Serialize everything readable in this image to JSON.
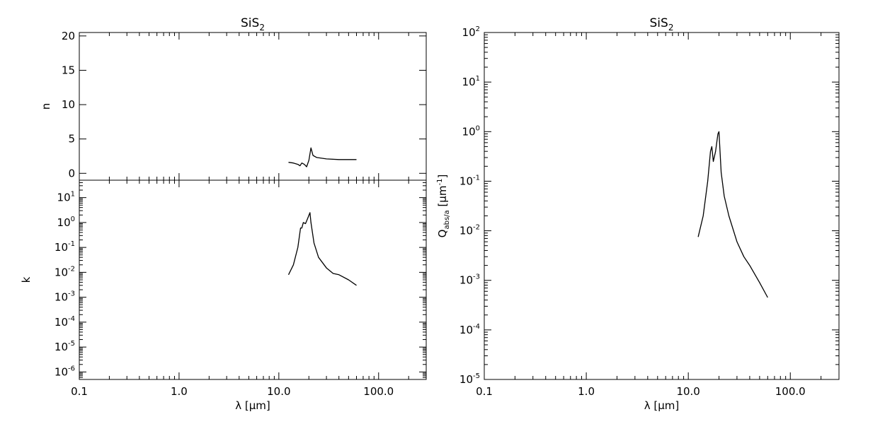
{
  "chart_data": [
    {
      "type": "line",
      "title": "SiS",
      "title_subscript": "2",
      "ylabel": "n",
      "xscale": "log",
      "yscale": "linear",
      "xlim": [
        0.1,
        300
      ],
      "ylim": [
        -1,
        20.5
      ],
      "y_ticks": [
        0,
        5,
        10,
        15,
        20
      ],
      "y_tick_labels": [
        "0",
        "5",
        "10",
        "15",
        "20"
      ],
      "series": [
        {
          "x": [
            12.5,
            14.0,
            15.5,
            16.3,
            17.0,
            18.0,
            19.0,
            20.0,
            21.0,
            22.0,
            24.0,
            30.0,
            40.0,
            50.0,
            60.0
          ],
          "y": [
            1.6,
            1.5,
            1.3,
            1.1,
            1.5,
            1.3,
            0.95,
            1.9,
            3.7,
            2.6,
            2.3,
            2.1,
            2.0,
            2.0,
            2.0
          ]
        }
      ]
    },
    {
      "type": "line",
      "xlabel": "λ [μm]",
      "ylabel": "k",
      "xscale": "log",
      "yscale": "log",
      "xlim": [
        0.1,
        300
      ],
      "ylim": [
        5e-07,
        50
      ],
      "x_ticks": [
        0.1,
        1.0,
        10.0,
        100.0
      ],
      "x_tick_labels": [
        "0.1",
        "1.0",
        "10.0",
        "100.0"
      ],
      "y_ticks": [
        1e-06,
        1e-05,
        0.0001,
        0.001,
        0.01,
        0.1,
        1,
        10
      ],
      "y_tick_labels": [
        {
          "base": "10",
          "exp": "-6"
        },
        {
          "base": "10",
          "exp": "-5"
        },
        {
          "base": "10",
          "exp": "-4"
        },
        {
          "base": "10",
          "exp": "-3"
        },
        {
          "base": "10",
          "exp": "-2"
        },
        {
          "base": "10",
          "exp": "-1"
        },
        {
          "base": "10",
          "exp": "0"
        },
        {
          "base": "10",
          "exp": "1"
        }
      ],
      "series": [
        {
          "x": [
            12.5,
            14.0,
            15.5,
            16.5,
            17.0,
            17.6,
            18.5,
            19.5,
            20.5,
            21.0,
            22.5,
            25.0,
            30.0,
            35.0,
            40.0,
            50.0,
            60.0
          ],
          "y": [
            0.008,
            0.02,
            0.1,
            0.6,
            0.6,
            1.0,
            0.9,
            1.5,
            2.5,
            1.0,
            0.15,
            0.04,
            0.015,
            0.009,
            0.008,
            0.005,
            0.003
          ]
        }
      ]
    },
    {
      "type": "line",
      "title": "SiS",
      "title_subscript": "2",
      "xlabel": "λ [μm]",
      "ylabel": "Q_abs/a [μm^-1]",
      "xscale": "log",
      "yscale": "log",
      "xlim": [
        0.1,
        300
      ],
      "ylim": [
        1e-05,
        100
      ],
      "x_ticks": [
        0.1,
        1.0,
        10.0,
        100.0
      ],
      "x_tick_labels": [
        "0.1",
        "1.0",
        "10.0",
        "100.0"
      ],
      "y_ticks": [
        1e-05,
        0.0001,
        0.001,
        0.01,
        0.1,
        1,
        10,
        100
      ],
      "y_tick_labels": [
        {
          "base": "10",
          "exp": "-5"
        },
        {
          "base": "10",
          "exp": "-4"
        },
        {
          "base": "10",
          "exp": "-3"
        },
        {
          "base": "10",
          "exp": "-2"
        },
        {
          "base": "10",
          "exp": "-1"
        },
        {
          "base": "10",
          "exp": "0"
        },
        {
          "base": "10",
          "exp": "1"
        },
        {
          "base": "10",
          "exp": "2"
        }
      ],
      "series": [
        {
          "x": [
            12.5,
            14.0,
            15.5,
            16.5,
            17.0,
            17.6,
            18.5,
            19.5,
            20.0,
            21.0,
            22.5,
            25.0,
            30.0,
            35.0,
            40.0,
            50.0,
            60.0
          ],
          "y": [
            0.0075,
            0.02,
            0.1,
            0.4,
            0.5,
            0.25,
            0.4,
            0.9,
            1.0,
            0.15,
            0.05,
            0.02,
            0.006,
            0.003,
            0.002,
            0.0009,
            0.00045
          ]
        }
      ]
    }
  ]
}
